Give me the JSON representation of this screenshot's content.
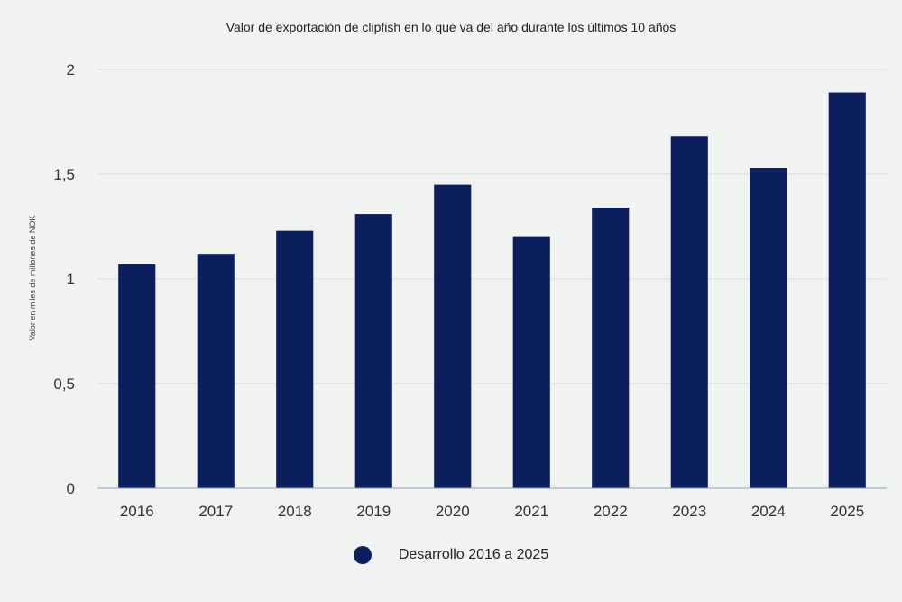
{
  "chart_data": {
    "type": "bar",
    "title": "Valor de exportación de clipfish en lo que va del año durante los últimos 10 años",
    "ylabel": "Valor en miles de millones de NOK",
    "xlabel": "",
    "categories": [
      "2016",
      "2017",
      "2018",
      "2019",
      "2020",
      "2021",
      "2022",
      "2023",
      "2024",
      "2025"
    ],
    "series": [
      {
        "name": "Desarrollo 2016 a 2025",
        "values": [
          1.07,
          1.12,
          1.23,
          1.31,
          1.45,
          1.2,
          1.34,
          1.68,
          1.53,
          1.89
        ],
        "color": "#0b1e5e"
      }
    ],
    "ylim": [
      0,
      2
    ],
    "yticks": [
      0,
      0.5,
      1,
      1.5,
      2
    ],
    "ytick_labels": [
      "0",
      "0,5",
      "1",
      "1,5",
      "2"
    ],
    "grid": true,
    "legend_position": "bottom-center"
  }
}
